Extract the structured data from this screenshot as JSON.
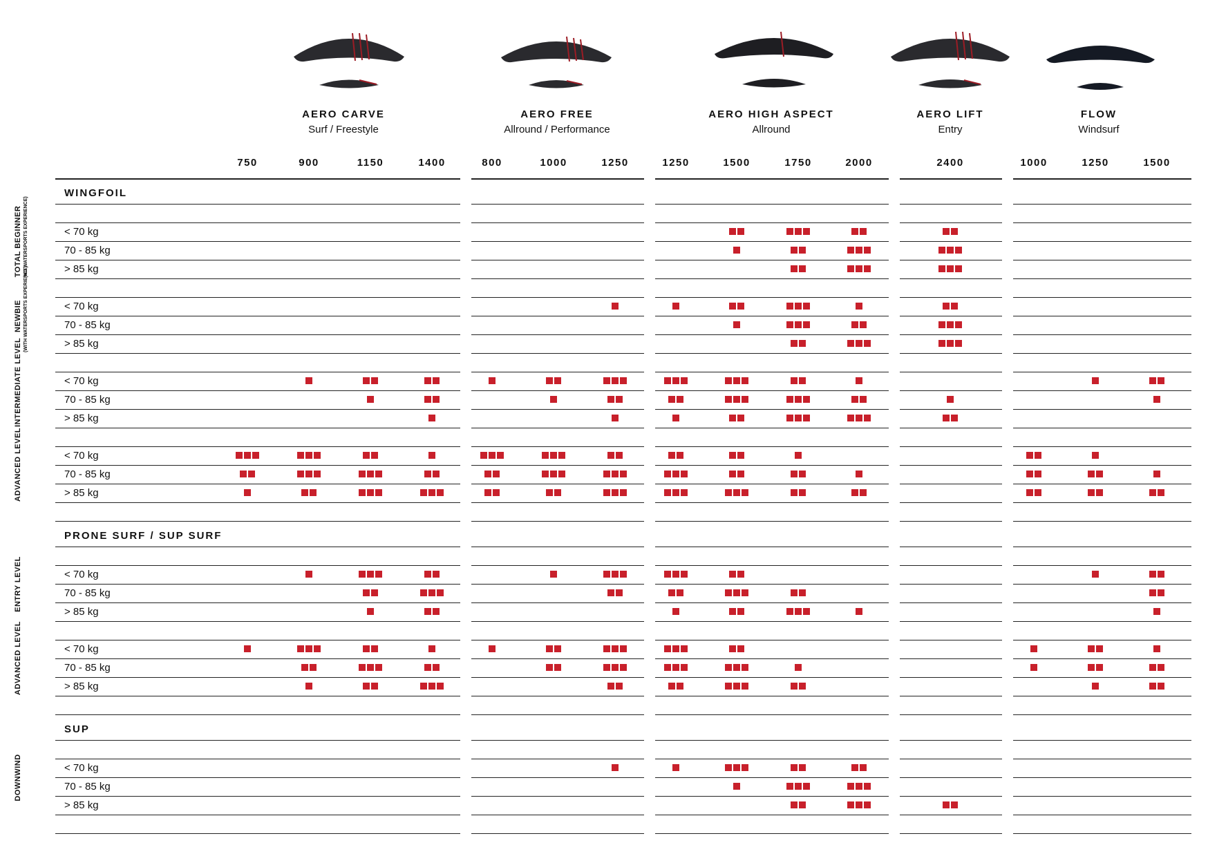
{
  "families": [
    {
      "name": "AERO CARVE",
      "sub": "Surf / Freestyle",
      "sizes": [
        "750",
        "900",
        "1150",
        "1400"
      ]
    },
    {
      "name": "AERO FREE",
      "sub": "Allround / Performance",
      "sizes": [
        "800",
        "1000",
        "1250"
      ]
    },
    {
      "name": "AERO HIGH ASPECT",
      "sub": "Allround",
      "sizes": [
        "1250",
        "1500",
        "1750",
        "2000"
      ]
    },
    {
      "name": "AERO LIFT",
      "sub": "Entry",
      "sizes": [
        "2400"
      ]
    },
    {
      "name": "FLOW",
      "sub": "Windsurf",
      "sizes": [
        "1000",
        "1250",
        "1500"
      ]
    }
  ],
  "accent_color": "#c8202b",
  "sections": [
    {
      "title": "WINGFOIL",
      "groups": [
        {
          "label": "TOTAL BEGINNER",
          "sublabel": "(NO WATERSPORTS EXPERIENCE)",
          "rows": [
            {
              "label": "< 70 kg",
              "values": [
                0,
                0,
                0,
                0,
                0,
                0,
                0,
                0,
                2,
                3,
                2,
                2,
                0,
                0,
                0
              ]
            },
            {
              "label": "70 - 85 kg",
              "values": [
                0,
                0,
                0,
                0,
                0,
                0,
                0,
                0,
                1,
                2,
                3,
                3,
                0,
                0,
                0
              ]
            },
            {
              "label": "> 85 kg",
              "values": [
                0,
                0,
                0,
                0,
                0,
                0,
                0,
                0,
                0,
                2,
                3,
                3,
                0,
                0,
                0
              ]
            }
          ]
        },
        {
          "label": "NEWBIE",
          "sublabel": "(WITH WATERSPORTS EXPERIENCE)",
          "rows": [
            {
              "label": "< 70 kg",
              "values": [
                0,
                0,
                0,
                0,
                0,
                0,
                1,
                1,
                2,
                3,
                1,
                2,
                0,
                0,
                0
              ]
            },
            {
              "label": "70 - 85 kg",
              "values": [
                0,
                0,
                0,
                0,
                0,
                0,
                0,
                0,
                1,
                3,
                2,
                3,
                0,
                0,
                0
              ]
            },
            {
              "label": "> 85 kg",
              "values": [
                0,
                0,
                0,
                0,
                0,
                0,
                0,
                0,
                0,
                2,
                3,
                3,
                0,
                0,
                0
              ]
            }
          ]
        },
        {
          "label": "INTERMEDIATE LEVEL",
          "sublabel": "",
          "rows": [
            {
              "label": "< 70 kg",
              "values": [
                0,
                1,
                2,
                2,
                1,
                2,
                3,
                3,
                3,
                2,
                1,
                0,
                0,
                1,
                2
              ]
            },
            {
              "label": "70 - 85 kg",
              "values": [
                0,
                0,
                1,
                2,
                0,
                1,
                2,
                2,
                3,
                3,
                2,
                1,
                0,
                0,
                1
              ]
            },
            {
              "label": "> 85 kg",
              "values": [
                0,
                0,
                0,
                1,
                0,
                0,
                1,
                1,
                2,
                3,
                3,
                2,
                0,
                0,
                0
              ]
            }
          ]
        },
        {
          "label": "ADVANCED LEVEL",
          "sublabel": "",
          "rows": [
            {
              "label": "< 70 kg",
              "values": [
                3,
                3,
                2,
                1,
                3,
                3,
                2,
                2,
                2,
                1,
                0,
                0,
                2,
                1,
                0
              ]
            },
            {
              "label": "70 - 85 kg",
              "values": [
                2,
                3,
                3,
                2,
                2,
                3,
                3,
                3,
                2,
                2,
                1,
                0,
                2,
                2,
                1
              ]
            },
            {
              "label": "> 85 kg",
              "values": [
                1,
                2,
                3,
                3,
                2,
                2,
                3,
                3,
                3,
                2,
                2,
                0,
                2,
                2,
                2
              ]
            }
          ]
        }
      ]
    },
    {
      "title": "PRONE SURF / SUP SURF",
      "groups": [
        {
          "label": "ENTRY LEVEL",
          "sublabel": "",
          "rows": [
            {
              "label": "< 70 kg",
              "values": [
                0,
                1,
                3,
                2,
                0,
                1,
                3,
                3,
                2,
                0,
                0,
                0,
                0,
                1,
                2
              ]
            },
            {
              "label": "70 - 85 kg",
              "values": [
                0,
                0,
                2,
                3,
                0,
                0,
                2,
                2,
                3,
                2,
                0,
                0,
                0,
                0,
                2
              ]
            },
            {
              "label": "> 85 kg",
              "values": [
                0,
                0,
                1,
                2,
                0,
                0,
                0,
                1,
                2,
                3,
                1,
                0,
                0,
                0,
                1
              ]
            }
          ]
        },
        {
          "label": "ADVANCED LEVEL",
          "sublabel": "",
          "rows": [
            {
              "label": "< 70 kg",
              "values": [
                1,
                3,
                2,
                1,
                1,
                2,
                3,
                3,
                2,
                0,
                0,
                0,
                1,
                2,
                1
              ]
            },
            {
              "label": "70 - 85 kg",
              "values": [
                0,
                2,
                3,
                2,
                0,
                2,
                3,
                3,
                3,
                1,
                0,
                0,
                1,
                2,
                2
              ]
            },
            {
              "label": "> 85 kg",
              "values": [
                0,
                1,
                2,
                3,
                0,
                0,
                2,
                2,
                3,
                2,
                0,
                0,
                0,
                1,
                2
              ]
            }
          ]
        }
      ]
    },
    {
      "title": "SUP",
      "groups": [
        {
          "label": "DOWNWIND",
          "sublabel": "",
          "rows": [
            {
              "label": "< 70 kg",
              "values": [
                0,
                0,
                0,
                0,
                0,
                0,
                1,
                1,
                3,
                2,
                2,
                0,
                0,
                0,
                0
              ]
            },
            {
              "label": "70 - 85 kg",
              "values": [
                0,
                0,
                0,
                0,
                0,
                0,
                0,
                0,
                1,
                3,
                3,
                0,
                0,
                0,
                0
              ]
            },
            {
              "label": "> 85 kg",
              "values": [
                0,
                0,
                0,
                0,
                0,
                0,
                0,
                0,
                0,
                2,
                3,
                2,
                0,
                0,
                0
              ]
            }
          ]
        }
      ]
    }
  ]
}
